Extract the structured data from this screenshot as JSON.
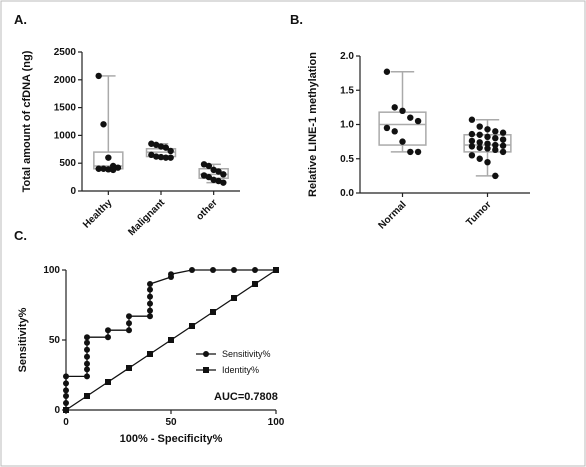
{
  "chart_data": [
    {
      "type": "box",
      "panel_label": "A.",
      "y_label": "Total amount of cfDNA (ng)",
      "categories": [
        "Healthy",
        "Malignant",
        "other"
      ],
      "ylim": [
        0,
        2500
      ],
      "yticks": [
        0,
        500,
        1000,
        1500,
        2000,
        2500
      ],
      "boxes": [
        {
          "min": 380,
          "q1": 400,
          "median": 450,
          "q3": 700,
          "max": 2070
        },
        {
          "min": 600,
          "q1": 620,
          "median": 700,
          "q3": 760,
          "max": 850
        },
        {
          "min": 150,
          "q1": 230,
          "median": 300,
          "q3": 400,
          "max": 480
        }
      ],
      "points": [
        [
          2070,
          1200,
          600,
          450,
          420,
          400,
          400,
          390,
          380
        ],
        [
          850,
          830,
          800,
          780,
          720,
          650,
          620,
          610,
          600,
          600
        ],
        [
          480,
          450,
          380,
          350,
          300,
          280,
          250,
          200,
          180,
          150
        ]
      ],
      "color": "#111111",
      "box_color": "#aaaaaa"
    },
    {
      "type": "box",
      "panel_label": "B.",
      "y_label": "Relative LINE-1 methylation",
      "categories": [
        "Normal",
        "Tumor"
      ],
      "ylim": [
        0,
        2
      ],
      "yticks": [
        {
          "value": 0,
          "label": "0.0"
        },
        {
          "value": 0.5,
          "label": "0.5"
        },
        {
          "value": 1,
          "label": "1.0"
        },
        {
          "value": 1.5,
          "label": "1.5"
        },
        {
          "value": 2,
          "label": "2.0"
        }
      ],
      "boxes": [
        {
          "min": 0.6,
          "q1": 0.7,
          "median": 1.0,
          "q3": 1.18,
          "max": 1.77
        },
        {
          "min": 0.25,
          "q1": 0.6,
          "median": 0.7,
          "q3": 0.85,
          "max": 1.07
        }
      ],
      "points": [
        [
          1.77,
          1.25,
          1.2,
          1.1,
          1.05,
          0.95,
          0.9,
          0.75,
          0.6,
          0.6
        ],
        [
          1.07,
          0.97,
          0.93,
          0.9,
          0.88,
          0.86,
          0.85,
          0.82,
          0.8,
          0.78,
          0.76,
          0.74,
          0.72,
          0.7,
          0.69,
          0.68,
          0.66,
          0.65,
          0.63,
          0.6,
          0.55,
          0.5,
          0.45,
          0.25
        ]
      ],
      "color": "#111111",
      "box_color": "#aaaaaa"
    },
    {
      "type": "line",
      "panel_label": "C.",
      "x_label": "100% - Specificity%",
      "y_label": "Sensitivity%",
      "xlim": [
        0,
        100
      ],
      "xticks": [
        0,
        50,
        100
      ],
      "ylim": [
        0,
        100
      ],
      "yticks": [
        0,
        50,
        100
      ],
      "legend": "right",
      "annotation": "AUC=0.7808",
      "series": [
        {
          "name": "Sensitivity%",
          "color": "#111111",
          "marker": "circle",
          "x": [
            0,
            0,
            0,
            0,
            0,
            0,
            10,
            10,
            10,
            10,
            10,
            10,
            10,
            20,
            20,
            30,
            30,
            30,
            40,
            40,
            40,
            40,
            40,
            40,
            50,
            50,
            60,
            70,
            80,
            90,
            100
          ],
          "values": [
            0,
            5,
            10,
            14,
            19,
            24,
            24,
            29,
            33,
            38,
            43,
            48,
            52,
            52,
            57,
            57,
            62,
            67,
            67,
            71,
            76,
            81,
            86,
            90,
            95,
            97,
            100,
            100,
            100,
            100,
            100
          ]
        },
        {
          "name": "Identity%",
          "color": "#111111",
          "marker": "square",
          "x": [
            0,
            10,
            20,
            30,
            40,
            50,
            60,
            70,
            80,
            90,
            100
          ],
          "values": [
            0,
            10,
            20,
            30,
            40,
            50,
            60,
            70,
            80,
            90,
            100
          ]
        }
      ]
    }
  ]
}
